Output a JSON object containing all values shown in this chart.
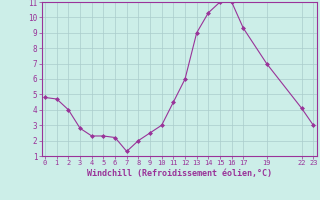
{
  "x": [
    0,
    1,
    2,
    3,
    4,
    5,
    6,
    7,
    8,
    9,
    10,
    11,
    12,
    13,
    14,
    15,
    16,
    17,
    19,
    22,
    23
  ],
  "y": [
    4.8,
    4.7,
    4.0,
    2.8,
    2.3,
    2.3,
    2.2,
    1.3,
    2.0,
    2.5,
    3.0,
    4.5,
    6.0,
    9.0,
    10.3,
    11.0,
    11.0,
    9.3,
    7.0,
    4.1,
    3.0
  ],
  "xticks": [
    0,
    1,
    2,
    3,
    4,
    5,
    6,
    7,
    8,
    9,
    10,
    11,
    12,
    13,
    14,
    15,
    16,
    17,
    19,
    22,
    23
  ],
  "yticks": [
    1,
    2,
    3,
    4,
    5,
    6,
    7,
    8,
    9,
    10,
    11
  ],
  "xlim": [
    -0.3,
    23.3
  ],
  "ylim": [
    1,
    11
  ],
  "xlabel": "Windchill (Refroidissement éolien,°C)",
  "line_color": "#993399",
  "marker": "D",
  "marker_size": 2,
  "bg_color": "#cceee8",
  "grid_color": "#aacccc",
  "tick_color": "#993399",
  "label_color": "#993399",
  "spine_color": "#993399"
}
